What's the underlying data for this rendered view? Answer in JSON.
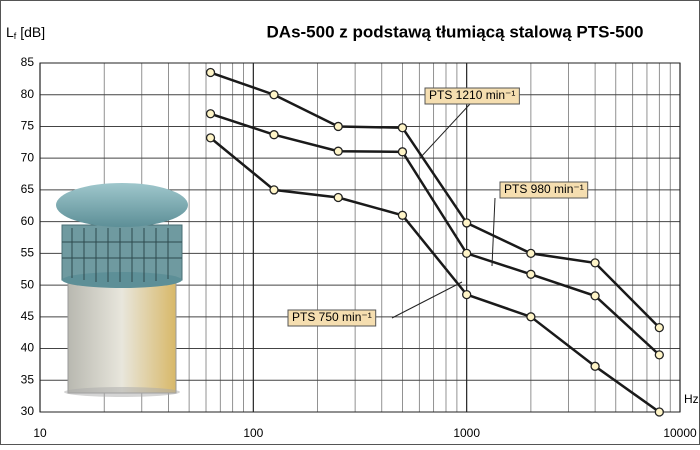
{
  "chart_data": {
    "type": "line",
    "title": "DAs-500 z podstawą tłumiącą stalową PTS-500",
    "y_label": [
      "L",
      "f",
      " [dB]"
    ],
    "x_label": "Hz",
    "x": [
      63,
      125,
      250,
      500,
      1000,
      2000,
      4000,
      8000
    ],
    "xlim": [
      10,
      10000
    ],
    "xticks": [
      10,
      100,
      1000,
      10000
    ],
    "log_x": true,
    "ylim": [
      30,
      85
    ],
    "yticks": [
      30,
      35,
      40,
      45,
      50,
      55,
      60,
      65,
      70,
      75,
      80,
      85
    ],
    "grid": true,
    "series": [
      {
        "name": "PTS 1210 min⁻¹",
        "color": "#1a1a1a",
        "values": [
          83.5,
          80,
          75,
          74.8,
          59.8,
          55,
          53.5,
          43.3
        ]
      },
      {
        "name": "PTS 980 min⁻¹",
        "color": "#1a1a1a",
        "values": [
          77,
          73.7,
          71.1,
          71,
          55,
          51.7,
          48.3,
          39
        ]
      },
      {
        "name": "PTS 750 min⁻¹",
        "color": "#1a1a1a",
        "values": [
          73.2,
          65,
          63.8,
          61,
          48.5,
          45,
          37.2,
          30
        ]
      }
    ]
  }
}
